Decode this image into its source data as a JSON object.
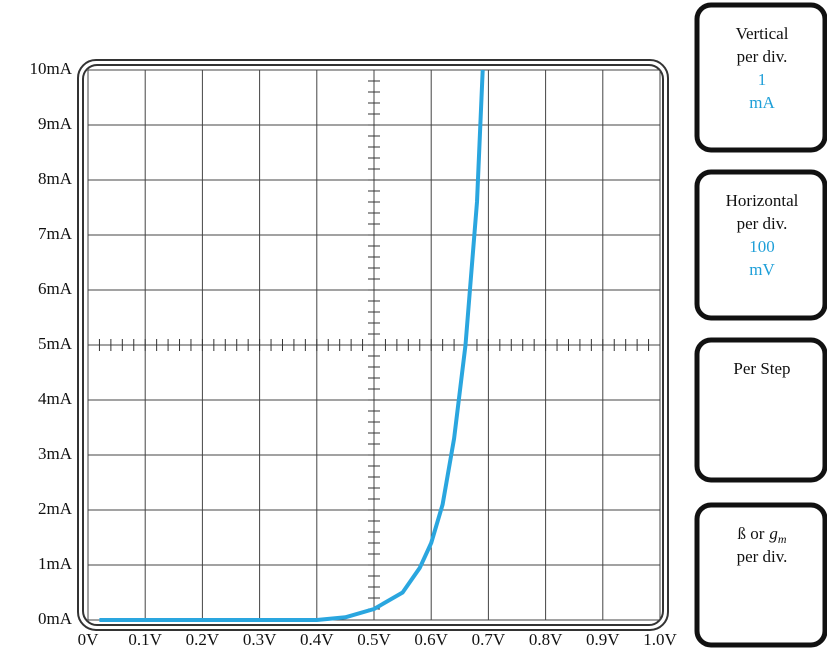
{
  "chart_data": {
    "type": "line",
    "x": [
      0.02,
      0.1,
      0.2,
      0.3,
      0.4,
      0.45,
      0.5,
      0.55,
      0.58,
      0.6,
      0.62,
      0.64,
      0.66,
      0.68,
      0.69
    ],
    "values": [
      0,
      0,
      0,
      0,
      0,
      0.05,
      0.2,
      0.5,
      0.95,
      1.4,
      2.1,
      3.3,
      5,
      7.6,
      10
    ],
    "color": "#2aa6df",
    "xlim": [
      0,
      1
    ],
    "ylim": [
      0,
      10
    ],
    "xticks": [
      {
        "value": 0,
        "label": "0V"
      },
      {
        "value": 0.1,
        "label": "0.1V"
      },
      {
        "value": 0.2,
        "label": "0.2V"
      },
      {
        "value": 0.3,
        "label": "0.3V"
      },
      {
        "value": 0.4,
        "label": "0.4V"
      },
      {
        "value": 0.5,
        "label": "0.5V"
      },
      {
        "value": 0.6,
        "label": "0.6V"
      },
      {
        "value": 0.7,
        "label": "0.7V"
      },
      {
        "value": 0.8,
        "label": "0.8V"
      },
      {
        "value": 0.9,
        "label": "0.9V"
      },
      {
        "value": 1.0,
        "label": "1.0V"
      }
    ],
    "yticks": [
      {
        "value": 0,
        "label": "0mA"
      },
      {
        "value": 1,
        "label": "1mA"
      },
      {
        "value": 2,
        "label": "2mA"
      },
      {
        "value": 3,
        "label": "3mA"
      },
      {
        "value": 4,
        "label": "4mA"
      },
      {
        "value": 5,
        "label": "5mA"
      },
      {
        "value": 6,
        "label": "6mA"
      },
      {
        "value": 7,
        "label": "7mA"
      },
      {
        "value": 8,
        "label": "8mA"
      },
      {
        "value": 9,
        "label": "9mA"
      },
      {
        "value": 10,
        "label": "10mA"
      }
    ],
    "grid": true
  },
  "panels": [
    {
      "lines": [
        "Vertical",
        "per div."
      ],
      "settings": [
        "1",
        "mA"
      ]
    },
    {
      "lines": [
        "Horizontal",
        "per div."
      ],
      "settings": [
        "100",
        "mV"
      ]
    },
    {
      "lines": [
        "Per Step"
      ],
      "settings": []
    },
    {
      "prefix": "ß or",
      "symbol": "g",
      "subscript": "m",
      "lines": [
        "per div."
      ],
      "settings": []
    }
  ]
}
